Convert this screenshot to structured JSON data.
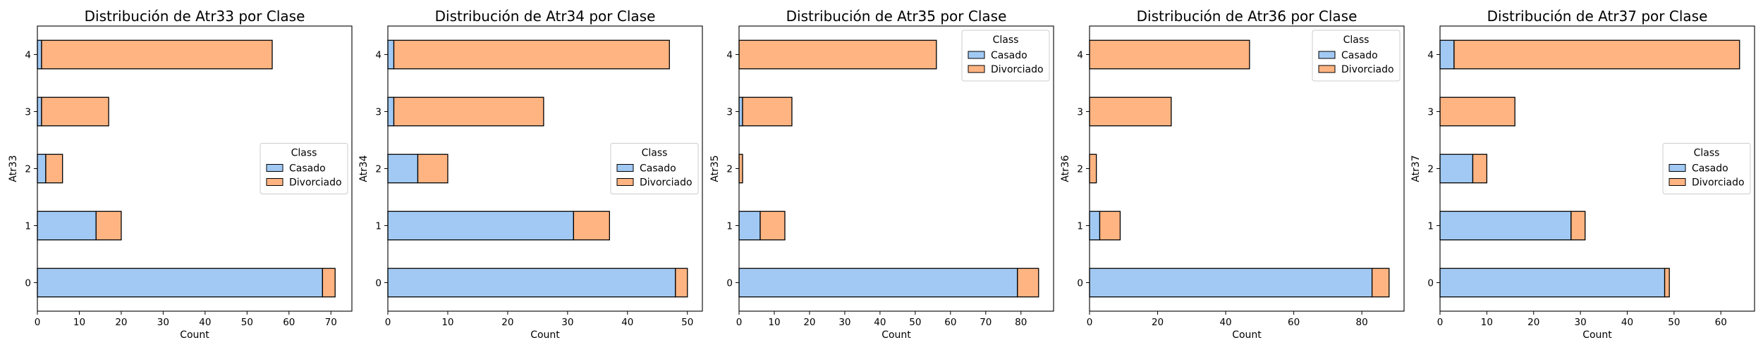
{
  "colors": {
    "Casado": "#a1c9f4",
    "Divorciado": "#ffb482",
    "edge": "#000000"
  },
  "chart_data": [
    {
      "type": "bar",
      "orientation": "horizontal",
      "stacked": true,
      "title": "Distribución de Atr33 por Clase",
      "xlabel": "Count",
      "ylabel": "Atr33",
      "categories": [
        "0",
        "1",
        "2",
        "3",
        "4"
      ],
      "series": [
        {
          "name": "Casado",
          "values": [
            68,
            14,
            2,
            1,
            1
          ]
        },
        {
          "name": "Divorciado",
          "values": [
            3,
            6,
            4,
            16,
            55
          ]
        }
      ],
      "xlim": [
        0,
        75
      ],
      "xticks": [
        0,
        10,
        20,
        30,
        40,
        50,
        60,
        70
      ],
      "legend": {
        "title": "Class",
        "position": "center-right"
      }
    },
    {
      "type": "bar",
      "orientation": "horizontal",
      "stacked": true,
      "title": "Distribución de Atr34 por Clase",
      "xlabel": "Count",
      "ylabel": "Atr34",
      "categories": [
        "0",
        "1",
        "2",
        "3",
        "4"
      ],
      "series": [
        {
          "name": "Casado",
          "values": [
            48,
            31,
            5,
            1,
            1
          ]
        },
        {
          "name": "Divorciado",
          "values": [
            2,
            6,
            5,
            25,
            46
          ]
        }
      ],
      "xlim": [
        0,
        52.5
      ],
      "xticks": [
        0,
        10,
        20,
        30,
        40,
        50
      ],
      "legend": {
        "title": "Class",
        "position": "center-right"
      }
    },
    {
      "type": "bar",
      "orientation": "horizontal",
      "stacked": true,
      "title": "Distribución de Atr35 por Clase",
      "xlabel": "Count",
      "ylabel": "Atr35",
      "categories": [
        "0",
        "1",
        "2",
        "3",
        "4"
      ],
      "series": [
        {
          "name": "Casado",
          "values": [
            79,
            6,
            0,
            1,
            0
          ]
        },
        {
          "name": "Divorciado",
          "values": [
            6,
            7,
            1,
            14,
            56
          ]
        }
      ],
      "xlim": [
        0,
        89.25
      ],
      "xticks": [
        0,
        10,
        20,
        30,
        40,
        50,
        60,
        70,
        80
      ],
      "legend": {
        "title": "Class",
        "position": "upper-right"
      }
    },
    {
      "type": "bar",
      "orientation": "horizontal",
      "stacked": true,
      "title": "Distribución de Atr36 por Clase",
      "xlabel": "Count",
      "ylabel": "Atr36",
      "categories": [
        "0",
        "1",
        "2",
        "3",
        "4"
      ],
      "series": [
        {
          "name": "Casado",
          "values": [
            83,
            3,
            0,
            0,
            0
          ]
        },
        {
          "name": "Divorciado",
          "values": [
            5,
            6,
            2,
            24,
            47
          ]
        }
      ],
      "xlim": [
        0,
        92.4
      ],
      "xticks": [
        0,
        20,
        40,
        60,
        80
      ],
      "legend": {
        "title": "Class",
        "position": "upper-right"
      }
    },
    {
      "type": "bar",
      "orientation": "horizontal",
      "stacked": true,
      "title": "Distribución de Atr37 por Clase",
      "xlabel": "Count",
      "ylabel": "Atr37",
      "categories": [
        "0",
        "1",
        "2",
        "3",
        "4"
      ],
      "series": [
        {
          "name": "Casado",
          "values": [
            48,
            28,
            7,
            0,
            3
          ]
        },
        {
          "name": "Divorciado",
          "values": [
            1,
            3,
            3,
            16,
            61
          ]
        }
      ],
      "xlim": [
        0,
        67.2
      ],
      "xticks": [
        0,
        10,
        20,
        30,
        40,
        50,
        60
      ],
      "legend": {
        "title": "Class",
        "position": "center-right"
      }
    }
  ]
}
